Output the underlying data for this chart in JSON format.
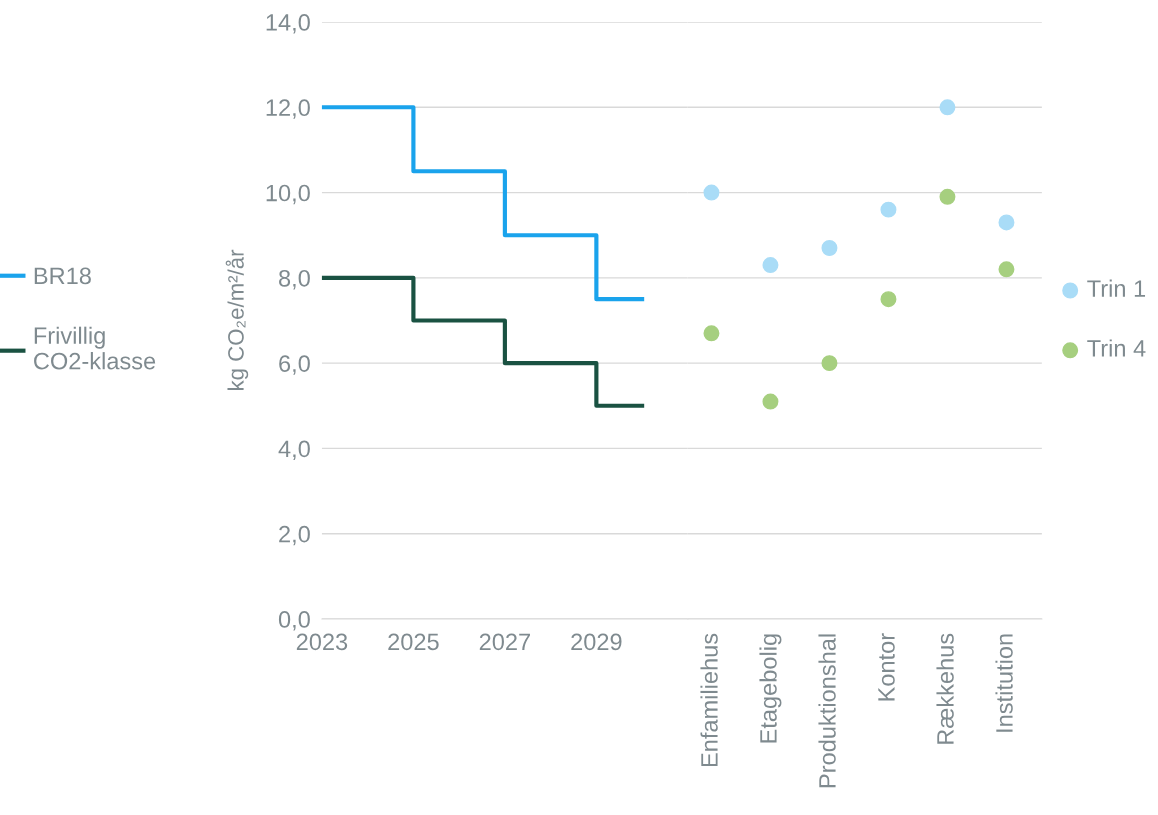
{
  "chart_data": [
    {
      "type": "step",
      "ylabel": "kg CO₂e/m²/år",
      "x": [
        2023,
        2025,
        2027,
        2029,
        2030
      ],
      "xlim": [
        2023,
        2031
      ],
      "xticks": [
        2023,
        2025,
        2027,
        2029
      ],
      "ylim": [
        0,
        14
      ],
      "yticks": [
        {
          "value": 0,
          "label": "0,0"
        },
        {
          "value": 2,
          "label": "2,0"
        },
        {
          "value": 4,
          "label": "4,0"
        },
        {
          "value": 6,
          "label": "6,0"
        },
        {
          "value": 8,
          "label": "8,0"
        },
        {
          "value": 10,
          "label": "10,0"
        },
        {
          "value": 12,
          "label": "12,0"
        },
        {
          "value": 14,
          "label": "14,0"
        }
      ],
      "grid": "y",
      "legend": "left",
      "series": [
        {
          "name": "BR18",
          "color": "#1aa3ec",
          "values": [
            12,
            10.5,
            9,
            7.5,
            7.5
          ]
        },
        {
          "name": "Frivillig\nCO2-klasse",
          "color": "#1a5242",
          "values": [
            8,
            7,
            6,
            5,
            5
          ]
        }
      ]
    },
    {
      "type": "scatter",
      "categories": [
        "Enfamiliehus",
        "Etagebolig",
        "Produktionshal",
        "Kontor",
        "Rækkehus",
        "Institution"
      ],
      "ylim": [
        0,
        14
      ],
      "yticks": [
        {
          "value": 0,
          "label": null
        },
        {
          "value": 2,
          "label": null
        },
        {
          "value": 4,
          "label": null
        },
        {
          "value": 6,
          "label": null
        },
        {
          "value": 8,
          "label": null
        },
        {
          "value": 10,
          "label": null
        },
        {
          "value": 12,
          "label": null
        },
        {
          "value": 14,
          "label": null
        }
      ],
      "tick_labels": "x",
      "grid": "y",
      "legend": "right",
      "marker": "circle",
      "series": [
        {
          "name": "Trin 1",
          "color": "#a9dcf7",
          "values": [
            10.0,
            8.3,
            8.7,
            9.6,
            12.0,
            9.3
          ]
        },
        {
          "name": "Trin 4",
          "color": "#a6cf7f",
          "values": [
            6.7,
            5.1,
            6.0,
            7.5,
            9.9,
            8.2
          ]
        }
      ]
    }
  ]
}
